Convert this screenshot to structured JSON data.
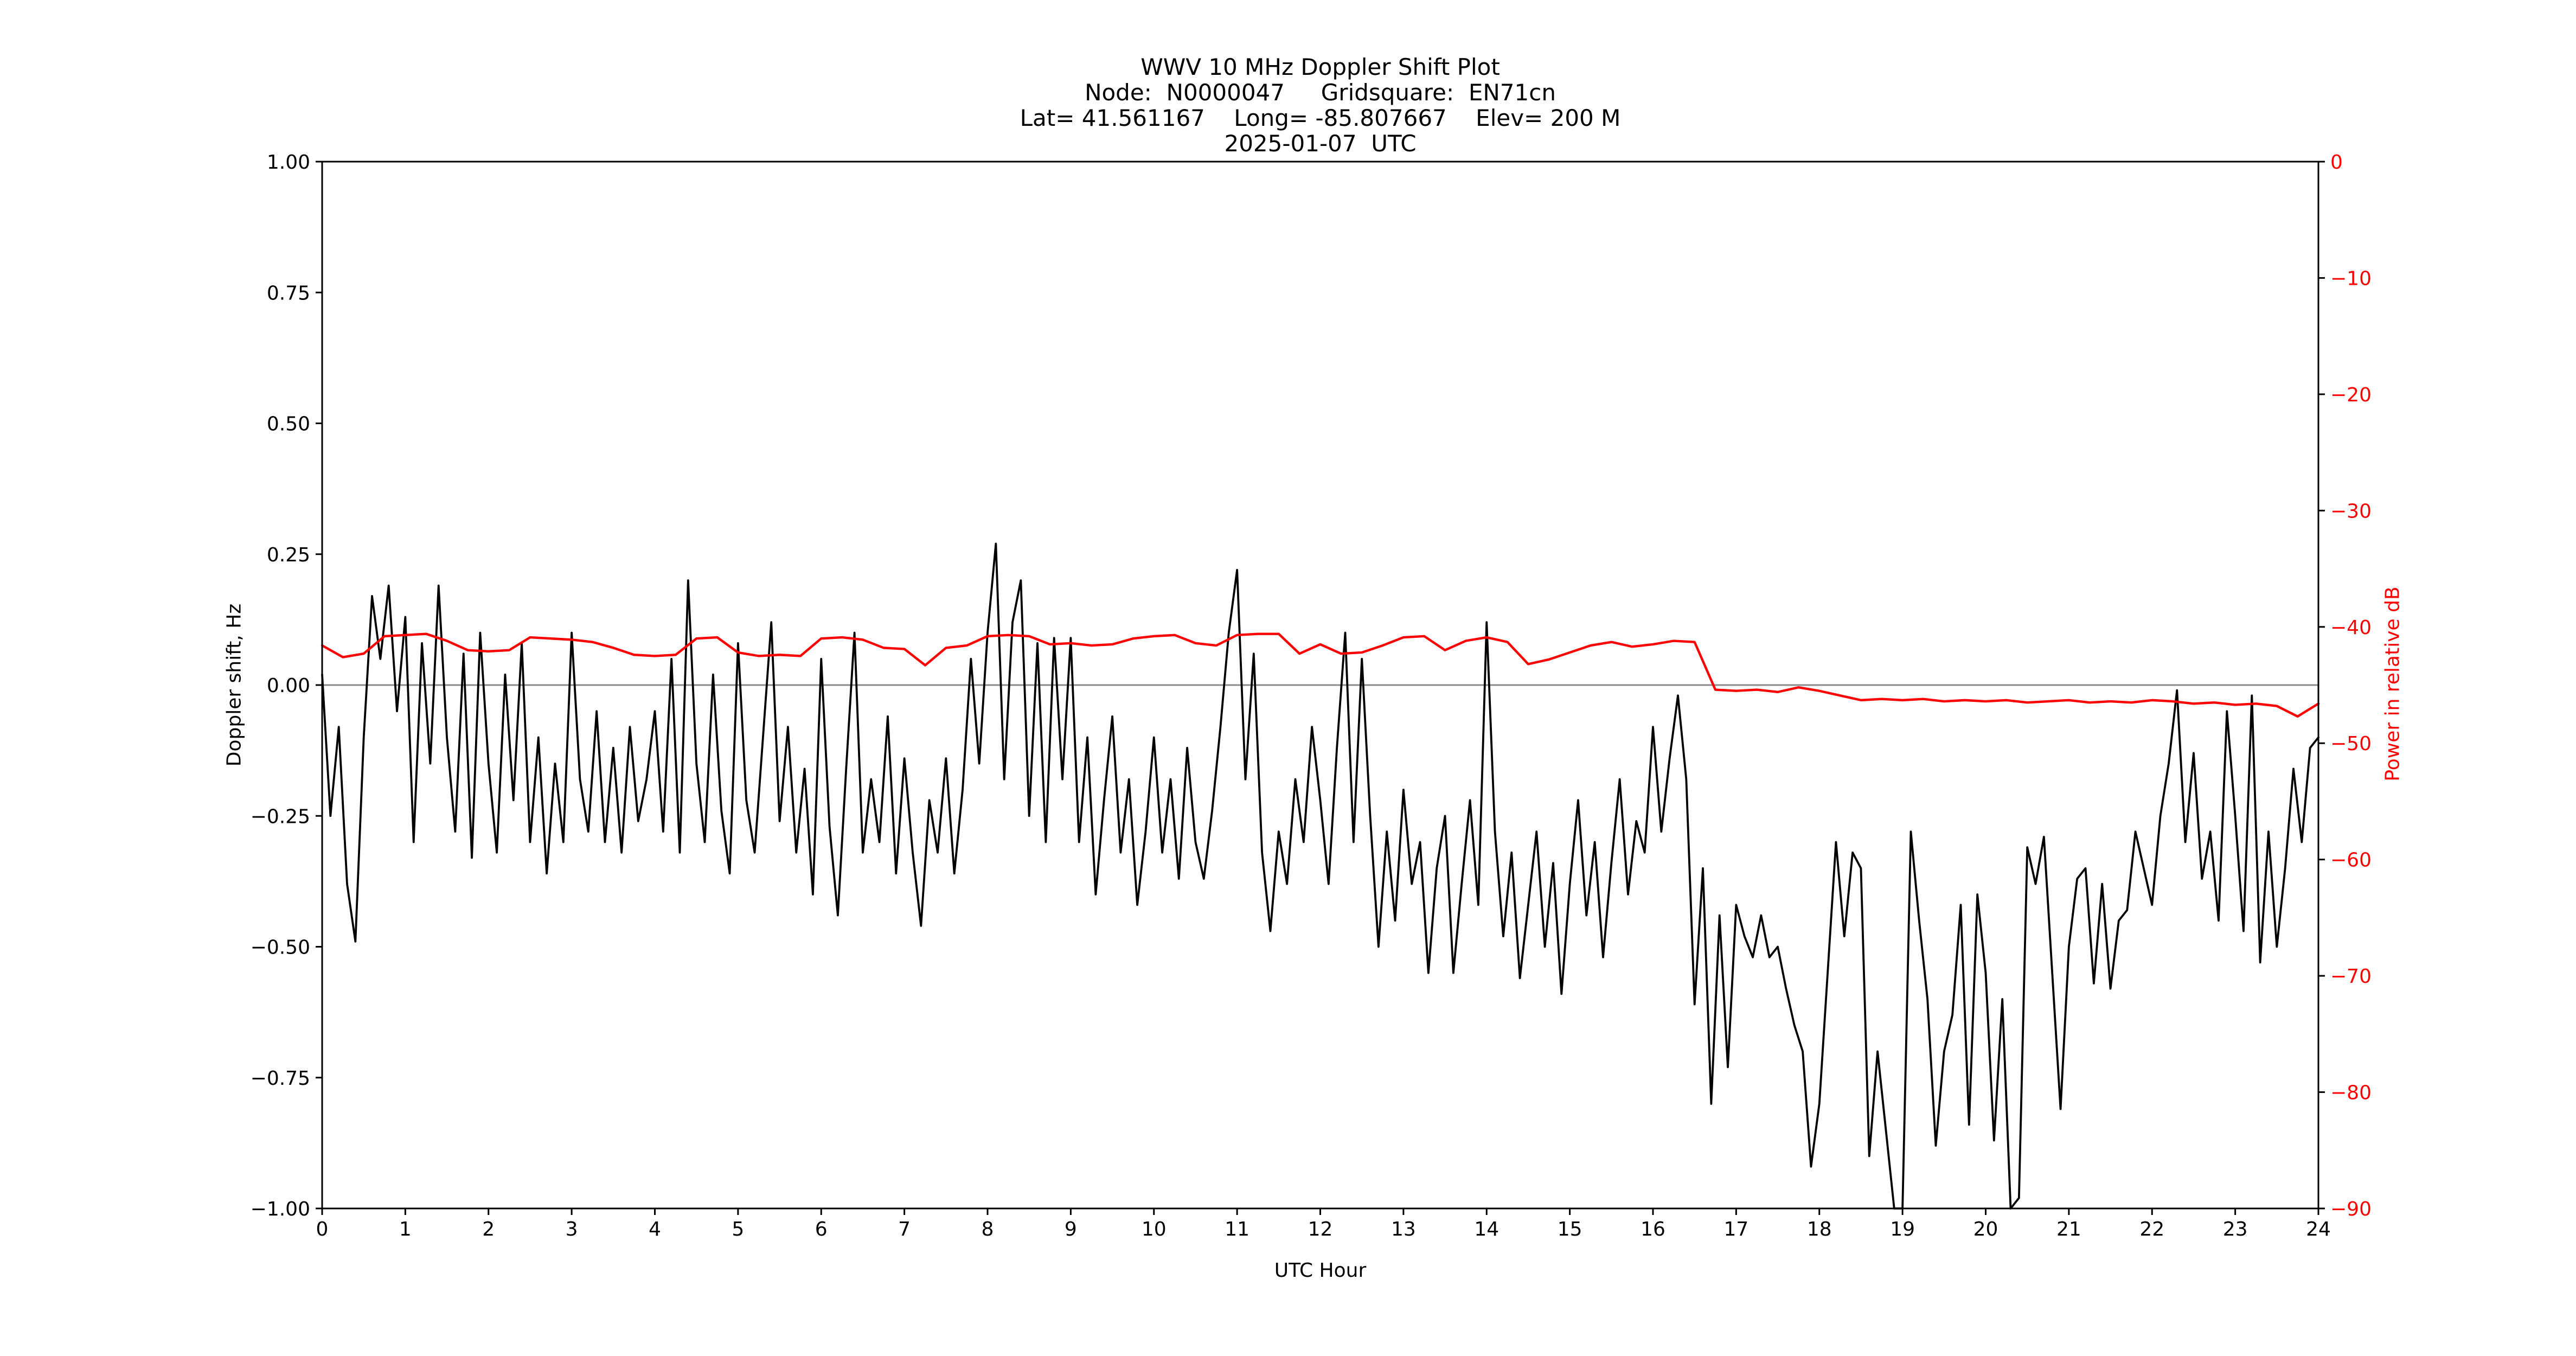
{
  "figure": {
    "background": "#ffffff",
    "title_lines": [
      "WWV 10 MHz Doppler Shift Plot",
      "Node:  N0000047     Gridsquare:  EN71cn",
      "Lat= 41.561167    Long= -85.807667    Elev= 200 M",
      "2025-01-07  UTC"
    ]
  },
  "chart_data": {
    "type": "line",
    "title": "WWV 10 MHz Doppler Shift Plot",
    "subtitle_lines": [
      "Node:  N0000047     Gridsquare:  EN71cn",
      "Lat= 41.561167    Long= -85.807667    Elev= 200 M",
      "2025-01-07  UTC"
    ],
    "xlabel": "UTC Hour",
    "ylabel_left": "Doppler shift, Hz",
    "ylabel_right": "Power in relative dB",
    "xlim": [
      0,
      24
    ],
    "ylim_left": [
      -1.0,
      1.0
    ],
    "ylim_right": [
      -90,
      0
    ],
    "grid": "zero-line only",
    "legend": "none",
    "x_ticks": [
      0,
      1,
      2,
      3,
      4,
      5,
      6,
      7,
      8,
      9,
      10,
      11,
      12,
      13,
      14,
      15,
      16,
      17,
      18,
      19,
      20,
      21,
      22,
      23,
      24
    ],
    "x_tick_labels": [
      "0",
      "1",
      "2",
      "3",
      "4",
      "5",
      "6",
      "7",
      "8",
      "9",
      "10",
      "11",
      "12",
      "13",
      "14",
      "15",
      "16",
      "17",
      "18",
      "19",
      "20",
      "21",
      "22",
      "23",
      "24"
    ],
    "y_ticks_left": [
      1.0,
      0.75,
      0.5,
      0.25,
      0.0,
      -0.25,
      -0.5,
      -0.75,
      -1.0
    ],
    "y_tick_labels_left": [
      "1.00",
      "0.75",
      "0.50",
      "0.25",
      "0.00",
      "−0.25",
      "−0.50",
      "−0.75",
      "−1.00"
    ],
    "y_ticks_right": [
      0,
      -10,
      -20,
      -30,
      -40,
      -50,
      -60,
      -70,
      -80,
      -90
    ],
    "y_tick_labels_right": [
      "0",
      "−10",
      "−20",
      "−30",
      "−40",
      "−50",
      "−60",
      "−70",
      "−80",
      "−90"
    ],
    "zero_line": {
      "y": 0.0,
      "color": "#8a8a8a",
      "width": 3
    },
    "colors": {
      "doppler": "#000000",
      "power": "#ff0000",
      "spine": "#000000",
      "tick": "#000000",
      "right_tick_label": "#ff0000"
    },
    "series": [
      {
        "name": "Doppler shift, Hz",
        "axis": "left",
        "color": "#000000",
        "line_width": 3.8,
        "x_start": 0,
        "x_step": 0.1,
        "values": [
          0.02,
          -0.25,
          -0.08,
          -0.38,
          -0.49,
          -0.1,
          0.17,
          0.05,
          0.19,
          -0.05,
          0.13,
          -0.3,
          0.08,
          -0.15,
          0.19,
          -0.1,
          -0.28,
          0.06,
          -0.33,
          0.1,
          -0.15,
          -0.32,
          0.02,
          -0.22,
          0.08,
          -0.3,
          -0.1,
          -0.36,
          -0.15,
          -0.3,
          0.1,
          -0.18,
          -0.28,
          -0.05,
          -0.3,
          -0.12,
          -0.32,
          -0.08,
          -0.26,
          -0.18,
          -0.05,
          -0.28,
          0.05,
          -0.32,
          0.2,
          -0.15,
          -0.3,
          0.02,
          -0.24,
          -0.36,
          0.08,
          -0.22,
          -0.32,
          -0.1,
          0.12,
          -0.26,
          -0.08,
          -0.32,
          -0.16,
          -0.4,
          0.05,
          -0.27,
          -0.44,
          -0.16,
          0.1,
          -0.32,
          -0.18,
          -0.3,
          -0.06,
          -0.36,
          -0.14,
          -0.32,
          -0.46,
          -0.22,
          -0.32,
          -0.14,
          -0.36,
          -0.2,
          0.05,
          -0.15,
          0.1,
          0.27,
          -0.18,
          0.12,
          0.2,
          -0.25,
          0.08,
          -0.3,
          0.09,
          -0.18,
          0.09,
          -0.3,
          -0.1,
          -0.4,
          -0.22,
          -0.06,
          -0.32,
          -0.18,
          -0.42,
          -0.28,
          -0.1,
          -0.32,
          -0.18,
          -0.37,
          -0.12,
          -0.3,
          -0.37,
          -0.24,
          -0.08,
          0.1,
          0.22,
          -0.18,
          0.06,
          -0.32,
          -0.47,
          -0.28,
          -0.38,
          -0.18,
          -0.3,
          -0.08,
          -0.22,
          -0.38,
          -0.12,
          0.1,
          -0.3,
          0.05,
          -0.25,
          -0.5,
          -0.28,
          -0.45,
          -0.2,
          -0.38,
          -0.3,
          -0.55,
          -0.35,
          -0.25,
          -0.55,
          -0.38,
          -0.22,
          -0.42,
          0.12,
          -0.28,
          -0.48,
          -0.32,
          -0.56,
          -0.42,
          -0.28,
          -0.5,
          -0.34,
          -0.59,
          -0.38,
          -0.22,
          -0.44,
          -0.3,
          -0.52,
          -0.34,
          -0.18,
          -0.4,
          -0.26,
          -0.32,
          -0.08,
          -0.28,
          -0.14,
          -0.02,
          -0.18,
          -0.61,
          -0.35,
          -0.8,
          -0.44,
          -0.73,
          -0.42,
          -0.48,
          -0.52,
          -0.44,
          -0.52,
          -0.5,
          -0.58,
          -0.65,
          -0.7,
          -0.92,
          -0.8,
          -0.55,
          -0.3,
          -0.48,
          -0.32,
          -0.35,
          -0.9,
          -0.7,
          -0.85,
          -1.0,
          -1.0,
          -0.28,
          -0.45,
          -0.6,
          -0.88,
          -0.7,
          -0.63,
          -0.42,
          -0.84,
          -0.4,
          -0.55,
          -0.87,
          -0.6,
          -1.0,
          -0.98,
          -0.31,
          -0.38,
          -0.29,
          -0.55,
          -0.81,
          -0.5,
          -0.37,
          -0.35,
          -0.57,
          -0.38,
          -0.58,
          -0.45,
          -0.43,
          -0.28,
          -0.35,
          -0.42,
          -0.25,
          -0.15,
          -0.01,
          -0.3,
          -0.13,
          -0.37,
          -0.28,
          -0.45,
          -0.05,
          -0.25,
          -0.47,
          -0.02,
          -0.53,
          -0.28,
          -0.5,
          -0.35,
          -0.16,
          -0.3,
          -0.12,
          -0.1
        ]
      },
      {
        "name": "Power in relative dB",
        "axis": "right",
        "color": "#ff0000",
        "line_width": 4.4,
        "x_start": 0,
        "x_step": 0.25,
        "values": [
          -41.6,
          -42.6,
          -42.3,
          -40.8,
          -40.7,
          -40.6,
          -41.2,
          -42.0,
          -42.1,
          -42.0,
          -40.9,
          -41.0,
          -41.1,
          -41.3,
          -41.8,
          -42.4,
          -42.5,
          -42.4,
          -41.0,
          -40.9,
          -42.2,
          -42.5,
          -42.4,
          -42.5,
          -41.0,
          -40.9,
          -41.1,
          -41.8,
          -41.9,
          -43.3,
          -41.8,
          -41.6,
          -40.8,
          -40.7,
          -40.8,
          -41.5,
          -41.4,
          -41.6,
          -41.5,
          -41.0,
          -40.8,
          -40.7,
          -41.4,
          -41.6,
          -40.7,
          -40.6,
          -40.6,
          -42.3,
          -41.5,
          -42.3,
          -42.2,
          -41.6,
          -40.9,
          -40.8,
          -42.0,
          -41.2,
          -40.9,
          -41.3,
          -43.2,
          -42.8,
          -42.2,
          -41.6,
          -41.3,
          -41.7,
          -41.5,
          -41.2,
          -41.3,
          -45.4,
          -45.5,
          -45.4,
          -45.6,
          -45.2,
          -45.5,
          -45.9,
          -46.3,
          -46.2,
          -46.3,
          -46.2,
          -46.4,
          -46.3,
          -46.4,
          -46.3,
          -46.5,
          -46.4,
          -46.3,
          -46.5,
          -46.4,
          -46.5,
          -46.3,
          -46.4,
          -46.6,
          -46.5,
          -46.7,
          -46.6,
          -46.8,
          -47.7,
          -46.6
        ]
      }
    ]
  }
}
